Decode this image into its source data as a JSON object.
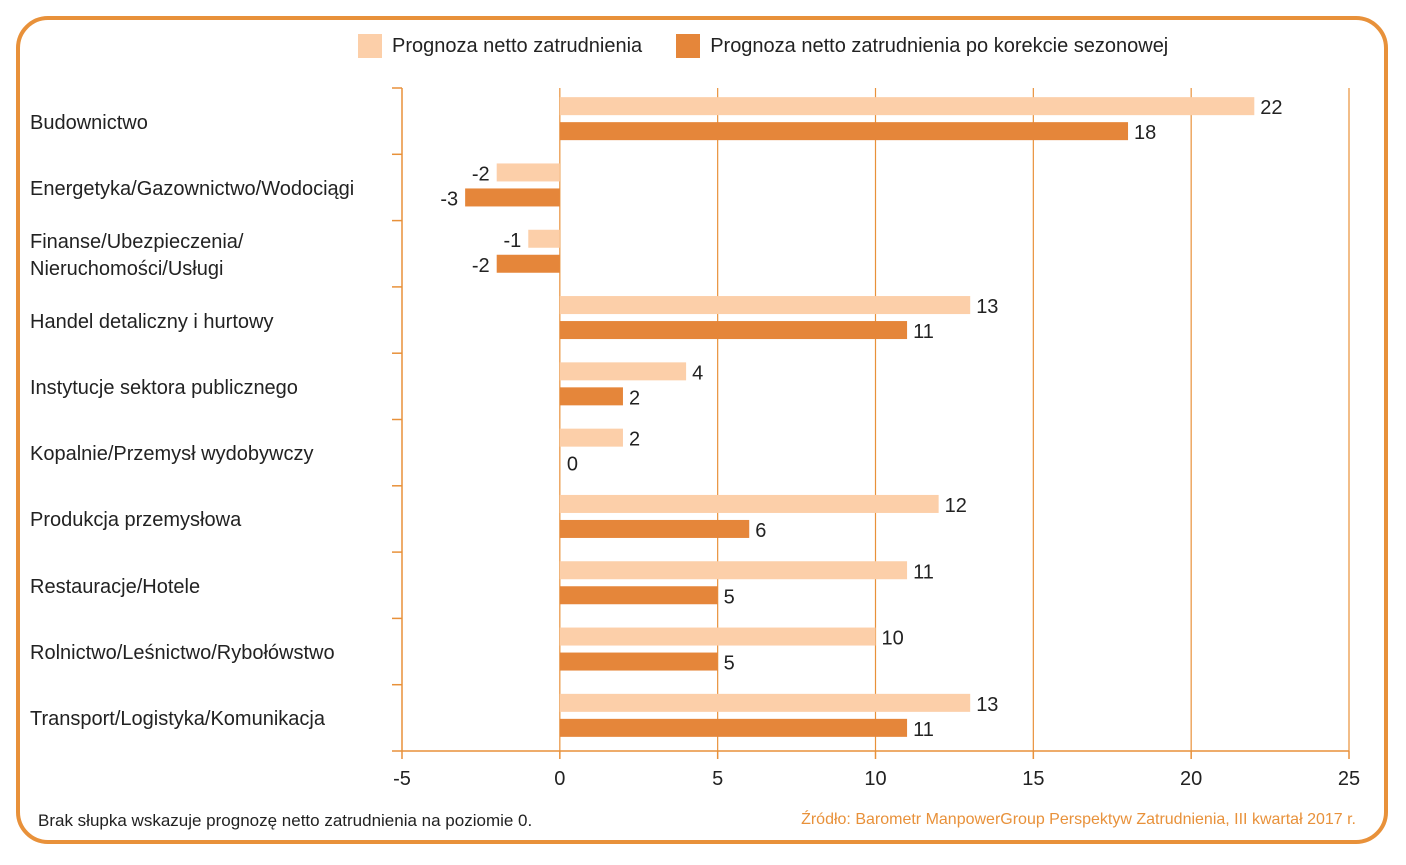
{
  "chart_data": {
    "type": "bar",
    "orientation": "horizontal",
    "categories": [
      [
        "Budownictwo"
      ],
      [
        "Energetyka/Gazownictwo/Wodociągi"
      ],
      [
        "Finanse/Ubezpieczenia/",
        "Nieruchomości/Usługi"
      ],
      [
        "Handel detaliczny i hurtowy"
      ],
      [
        "Instytucje sektora publicznego"
      ],
      [
        "Kopalnie/Przemysł wydobywczy"
      ],
      [
        "Produkcja przemysłowa"
      ],
      [
        "Restauracje/Hotele"
      ],
      [
        "Rolnictwo/Leśnictwo/Rybołówstwo"
      ],
      [
        "Transport/Logistyka/Komunikacja"
      ]
    ],
    "series": [
      {
        "name": "Prognoza netto zatrudnienia",
        "color": "#fccfa9",
        "values": [
          22,
          -2,
          -1,
          13,
          4,
          2,
          12,
          11,
          10,
          13
        ]
      },
      {
        "name": "Prognoza netto zatrudnienia po korekcie sezonowej",
        "color": "#e5863a",
        "values": [
          18,
          -3,
          -2,
          11,
          2,
          0,
          6,
          5,
          5,
          11
        ]
      }
    ],
    "xlim": [
      -5,
      25
    ],
    "xticks": [
      -5,
      0,
      5,
      10,
      15,
      20,
      25
    ],
    "grid": "vertical",
    "legend": "top"
  },
  "note": "Brak słupka wskazuje prognozę netto zatrudnienia na poziomie 0.",
  "source": "Źródło: Barometr ManpowerGroup Perspektyw Zatrudnienia, III kwartał 2017 r.",
  "colors": {
    "frame": "#e8913a",
    "text": "#222222",
    "axis": "#e8913a"
  }
}
